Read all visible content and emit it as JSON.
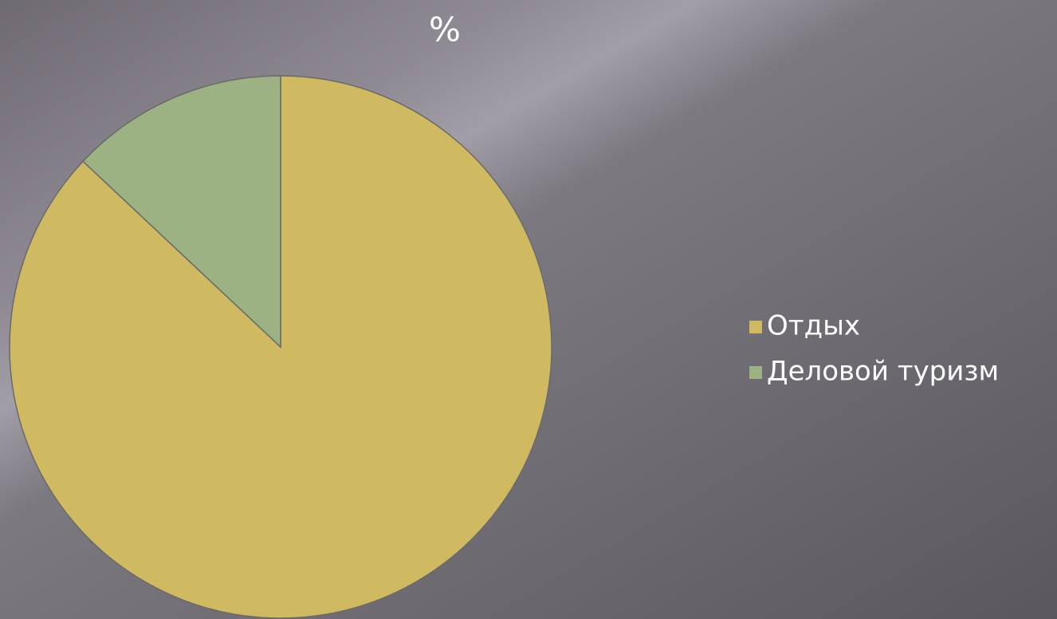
{
  "chart_data": {
    "type": "pie",
    "title": "%",
    "categories": [
      "Отдых",
      "Деловой туризм"
    ],
    "values": [
      87,
      13
    ],
    "colors": [
      "#cfb961",
      "#9db282"
    ],
    "legend": "right"
  }
}
